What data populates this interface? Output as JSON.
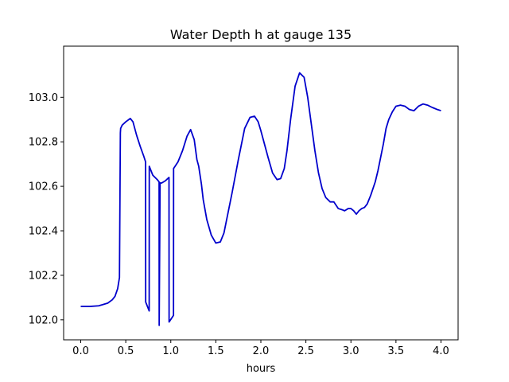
{
  "chart_data": {
    "type": "line",
    "title": "Water Depth h at gauge 135",
    "xlabel": "hours",
    "ylabel": "",
    "xlim": [
      -0.19,
      4.19
    ],
    "ylim": [
      101.91,
      103.23
    ],
    "xticks": [
      0.0,
      0.5,
      1.0,
      1.5,
      2.0,
      2.5,
      3.0,
      3.5,
      4.0
    ],
    "xtick_labels": [
      "0.0",
      "0.5",
      "1.0",
      "1.5",
      "2.0",
      "2.5",
      "3.0",
      "3.5",
      "4.0"
    ],
    "yticks": [
      102.0,
      102.2,
      102.4,
      102.6,
      102.8,
      103.0
    ],
    "ytick_labels": [
      "102.0",
      "102.2",
      "102.4",
      "102.6",
      "102.8",
      "103.0"
    ],
    "grid": false,
    "series": [
      {
        "color": "#0000cc",
        "x": [
          0.0,
          0.1,
          0.2,
          0.3,
          0.35,
          0.38,
          0.41,
          0.43,
          0.44,
          0.443,
          0.46,
          0.5,
          0.55,
          0.58,
          0.62,
          0.66,
          0.7,
          0.72,
          0.721,
          0.76,
          0.761,
          0.8,
          0.85,
          0.87,
          0.871,
          0.881,
          0.9,
          0.94,
          0.98,
          0.981,
          1.03,
          1.031,
          1.08,
          1.13,
          1.18,
          1.22,
          1.26,
          1.29,
          1.31,
          1.34,
          1.36,
          1.4,
          1.45,
          1.5,
          1.55,
          1.59,
          1.63,
          1.68,
          1.75,
          1.82,
          1.88,
          1.93,
          1.97,
          2.0,
          2.04,
          2.08,
          2.13,
          2.18,
          2.22,
          2.26,
          2.29,
          2.33,
          2.38,
          2.43,
          2.48,
          2.52,
          2.56,
          2.6,
          2.64,
          2.68,
          2.72,
          2.77,
          2.81,
          2.86,
          2.9,
          2.93,
          2.97,
          3.0,
          3.03,
          3.06,
          3.09,
          3.12,
          3.15,
          3.18,
          3.22,
          3.27,
          3.3,
          3.33,
          3.36,
          3.39,
          3.42,
          3.46,
          3.5,
          3.55,
          3.6,
          3.65,
          3.7,
          3.75,
          3.8,
          3.85,
          3.9,
          3.93,
          3.96,
          4.0
        ],
        "y": [
          102.06,
          102.06,
          102.063,
          102.075,
          102.09,
          102.105,
          102.14,
          102.19,
          102.84,
          102.86,
          102.875,
          102.89,
          102.905,
          102.89,
          102.83,
          102.78,
          102.735,
          102.71,
          102.08,
          102.04,
          102.69,
          102.65,
          102.63,
          102.62,
          101.975,
          102.615,
          102.615,
          102.625,
          102.64,
          101.99,
          102.02,
          102.68,
          102.71,
          102.76,
          102.825,
          102.855,
          102.81,
          102.72,
          102.69,
          102.61,
          102.54,
          102.45,
          102.38,
          102.345,
          102.35,
          102.39,
          102.47,
          102.57,
          102.72,
          102.86,
          102.91,
          102.915,
          102.89,
          102.85,
          102.79,
          102.73,
          102.66,
          102.63,
          102.635,
          102.68,
          102.76,
          102.9,
          103.05,
          103.11,
          103.09,
          103.0,
          102.88,
          102.76,
          102.66,
          102.59,
          102.55,
          102.53,
          102.53,
          102.5,
          102.495,
          102.49,
          102.5,
          102.5,
          102.49,
          102.475,
          102.49,
          102.5,
          102.505,
          102.52,
          102.56,
          102.62,
          102.67,
          102.73,
          102.79,
          102.86,
          102.9,
          102.935,
          102.96,
          102.965,
          102.96,
          102.945,
          102.94,
          102.96,
          102.97,
          102.965,
          102.955,
          102.95,
          102.945,
          102.94
        ]
      }
    ]
  }
}
